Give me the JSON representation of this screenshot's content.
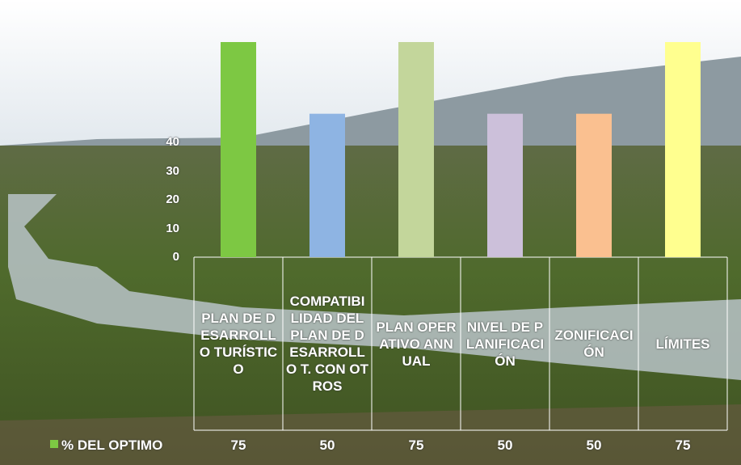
{
  "chart_data": {
    "type": "bar",
    "categories": [
      "PLAN DE DESARROLLO TURÍSTICO",
      "COMPATIBILIDAD DEL PLAN DE DESARROLLO T. CON OTROS",
      "PLAN OPERATIVO ANNUAL",
      "NIVEL DE PLANIFICACIÓN",
      "ZONIFICACIÓN",
      "LÍMITES"
    ],
    "series": [
      {
        "name": "% DEL OPTIMO",
        "colors": [
          "#7dc843",
          "#8eb4e3",
          "#c3d69b",
          "#ccc0da",
          "#fac090",
          "#ffff8f"
        ],
        "values": [
          75,
          50,
          75,
          50,
          50,
          75
        ]
      }
    ],
    "ylim": [
      0,
      75
    ],
    "yticks": [
      0,
      10,
      20,
      30,
      40
    ],
    "grid": false
  }
}
